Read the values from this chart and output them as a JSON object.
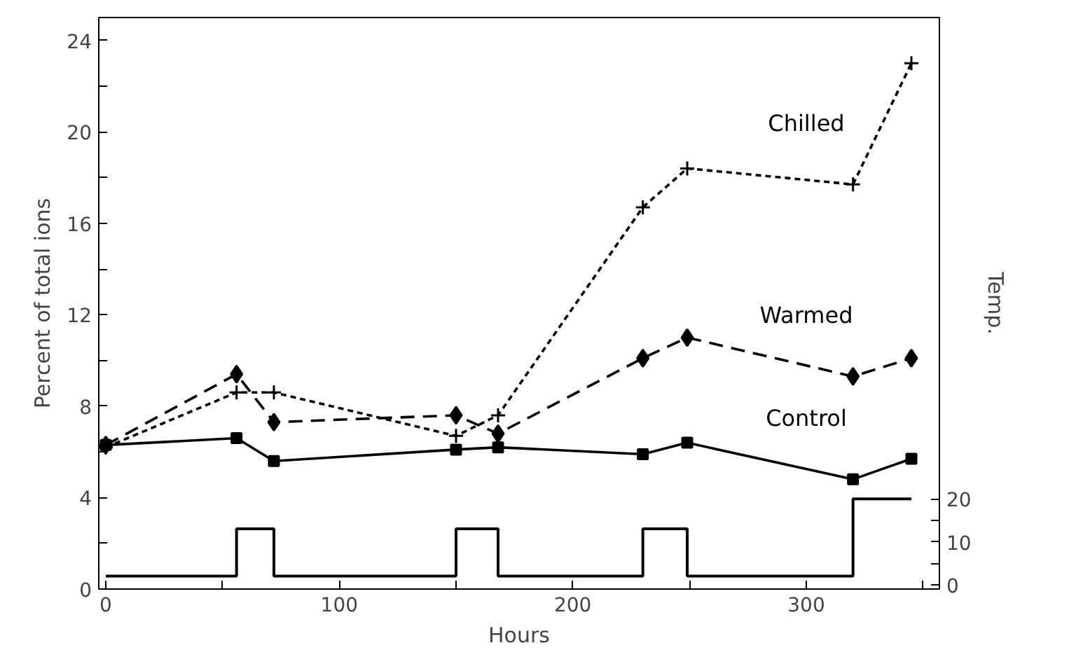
{
  "chart_data": {
    "type": "line",
    "xlabel": "Hours",
    "ylabel": "Percent of total ions",
    "y2label": "Temp.",
    "x": [
      0,
      56,
      72,
      150,
      168,
      230,
      249,
      320,
      345
    ],
    "series": [
      {
        "name": "Chilled",
        "color": "#000000",
        "line_style": "dotted",
        "marker": "cross",
        "values": [
          6.2,
          8.6,
          8.6,
          6.7,
          7.6,
          16.7,
          18.4,
          17.7,
          23.0
        ]
      },
      {
        "name": "Warmed",
        "color": "#000000",
        "line_style": "dashed",
        "marker": "diamond",
        "values": [
          6.3,
          9.4,
          7.3,
          7.6,
          6.8,
          10.1,
          11.0,
          9.3,
          10.1
        ]
      },
      {
        "name": "Control",
        "color": "#000000",
        "line_style": "solid",
        "marker": "square",
        "values": [
          6.3,
          6.6,
          5.6,
          6.1,
          6.2,
          5.9,
          6.4,
          4.8,
          5.7
        ]
      },
      {
        "type": "step",
        "axis": "y2",
        "color": "#000000",
        "line_style": "solid",
        "marker": "none",
        "values": [
          2,
          13,
          2,
          13,
          2,
          13,
          2,
          20,
          20
        ]
      }
    ],
    "xlim": [
      -3,
      357
    ],
    "ylim": [
      0,
      25
    ],
    "y2lim": [
      -1,
      132
    ],
    "xticks": [
      0,
      {
        "value": 50,
        "label": null
      },
      100,
      {
        "value": 150,
        "label": null
      },
      200,
      {
        "value": 250,
        "label": null
      },
      300,
      {
        "value": 350,
        "label": null
      }
    ],
    "yticks": [
      0,
      {
        "value": 2,
        "label": null
      },
      4,
      {
        "value": 6,
        "label": null
      },
      8,
      {
        "value": 10,
        "label": null
      },
      12,
      {
        "value": 14,
        "label": null
      },
      16,
      {
        "value": 18,
        "label": null
      },
      20,
      {
        "value": 22,
        "label": null
      },
      24
    ],
    "y2ticks": [
      0,
      {
        "value": 5,
        "label": null
      },
      10,
      {
        "value": 15,
        "label": null
      },
      20
    ],
    "grid": false
  }
}
